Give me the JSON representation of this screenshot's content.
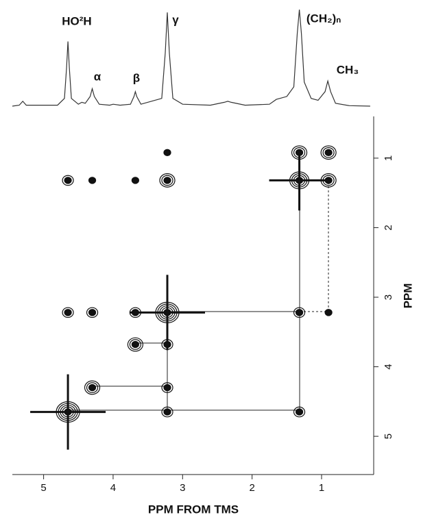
{
  "chart_data": [
    {
      "type": "line",
      "color": "#333333",
      "ylim": [
        0,
        100
      ],
      "annotations": [
        "HO²H",
        "α",
        "β",
        "γ",
        "(CH₂)ₙ",
        "CH₃"
      ],
      "x": [
        5.45,
        5.35,
        5.3,
        5.25,
        4.8,
        4.7,
        4.67,
        4.65,
        4.63,
        4.6,
        4.5,
        4.45,
        4.4,
        4.33,
        4.3,
        4.27,
        4.2,
        4.05,
        4.0,
        3.9,
        3.75,
        3.7,
        3.68,
        3.66,
        3.6,
        3.3,
        3.25,
        3.22,
        3.19,
        3.14,
        3.0,
        2.6,
        2.4,
        2.35,
        2.3,
        2.1,
        1.75,
        1.65,
        1.6,
        1.5,
        1.4,
        1.35,
        1.32,
        1.29,
        1.25,
        1.15,
        1.05,
        0.95,
        0.91,
        0.87,
        0.8,
        0.6,
        0.3
      ],
      "values": [
        0,
        1,
        5,
        1,
        1,
        8,
        40,
        67,
        40,
        8,
        2,
        4,
        3,
        10,
        18,
        10,
        2,
        1,
        2,
        1,
        2,
        10,
        15,
        10,
        2,
        8,
        55,
        97,
        55,
        8,
        2,
        1,
        4,
        5,
        4,
        1,
        2,
        7,
        8,
        10,
        20,
        75,
        100,
        75,
        25,
        8,
        6,
        15,
        26,
        15,
        3,
        0.5,
        0
      ]
    },
    {
      "type": "contour",
      "color": "#111111",
      "xlabel": "PPM FROM TMS",
      "ylabel": "PPM",
      "xlim": [
        5.45,
        0.25
      ],
      "ylim": [
        0.4,
        5.55
      ],
      "xticks": [
        5,
        4,
        3,
        2,
        1
      ],
      "yticks": [
        1,
        2,
        3,
        4,
        5
      ],
      "x": [
        4.65,
        4.3,
        3.68,
        3.22,
        1.32,
        0.9,
        1.32,
        0.9,
        4.65,
        4.3,
        3.68,
        3.22,
        3.22,
        4.65,
        4.3,
        3.68,
        1.32,
        0.9,
        3.22,
        3.22,
        3.22,
        1.32
      ],
      "values": [
        4.65,
        4.3,
        3.68,
        3.22,
        1.32,
        0.92,
        0.92,
        1.32,
        1.32,
        1.32,
        1.32,
        1.32,
        0.92,
        3.22,
        3.22,
        3.22,
        3.22,
        3.22,
        3.68,
        4.3,
        4.65,
        4.65
      ],
      "sizes": [
        5,
        3,
        3,
        5,
        4,
        3,
        3,
        3,
        2,
        1,
        1,
        3,
        1,
        2,
        2,
        2,
        2,
        1,
        2,
        2,
        2,
        2
      ]
    }
  ]
}
